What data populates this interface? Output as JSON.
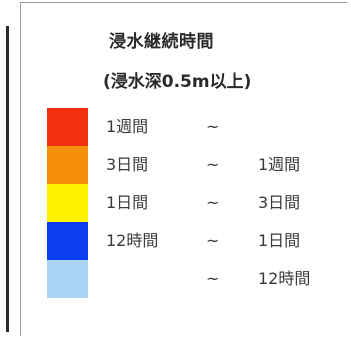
{
  "legend": {
    "title": "浸水継続時間",
    "subtitle": "(浸水深0.5m以上)",
    "rows": [
      {
        "from": "1週間",
        "tilde": "~",
        "to": "",
        "color": "#f0300e"
      },
      {
        "from": "3日間",
        "tilde": "~",
        "to": "1週間",
        "color": "#f78f0c"
      },
      {
        "from": "1日間",
        "tilde": "~",
        "to": "3日間",
        "color": "#fff200"
      },
      {
        "from": "12時間",
        "tilde": "~",
        "to": "1日間",
        "color": "#0a3ef0"
      },
      {
        "from": "",
        "tilde": "~",
        "to": "12時間",
        "color": "#a9d3f5"
      }
    ]
  }
}
